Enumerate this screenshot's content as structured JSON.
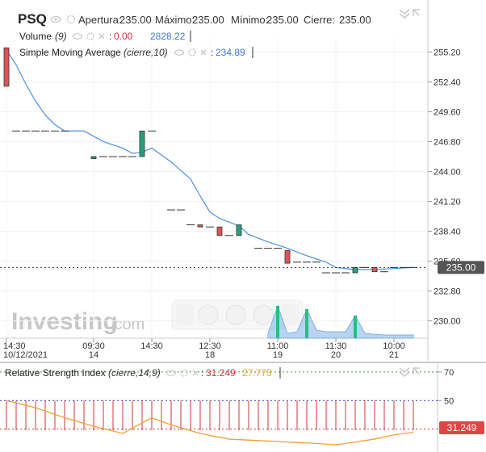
{
  "header": {
    "symbol": "PSQ",
    "ohlc": [
      {
        "label": "Apertura:",
        "value": "235.00"
      },
      {
        "label": "Máximo:",
        "value": "235.00"
      },
      {
        "label": "Mínimo:",
        "value": "235.00"
      },
      {
        "label": "Cierre:",
        "value": "235.00"
      }
    ]
  },
  "volume_legend": {
    "name": "Volume",
    "params": "(9)",
    "value_red": "0.00",
    "value_blue": "2828.22"
  },
  "sma_legend": {
    "name": "Simple Moving Average",
    "params": "(cierre,10)",
    "value": "234.89"
  },
  "rsi_legend": {
    "name": "Relative Strength Index",
    "params": "(cierre,14,9)",
    "value_red": "31.249",
    "value_orange": "27.773"
  },
  "watermark": {
    "brand": "Investing",
    "suffix": ".com"
  },
  "current_price_label": "235.00",
  "rsi_current_label": "31.249",
  "colors": {
    "up": "#26a17b",
    "down": "#e05353",
    "sma": "#4a90e2",
    "rsi_signal": "#f0a030",
    "rsi_main": "#d0343a",
    "volume": "#7fb0e8"
  },
  "chart_data": [
    {
      "type": "candlestick",
      "title": "PSQ",
      "x_labels": [
        {
          "pos": 0,
          "time": "14:30",
          "date": "10/12/2021"
        },
        {
          "pos": 9,
          "time": "09:30",
          "date": "14"
        },
        {
          "pos": 15,
          "time": "14:30",
          "date": ""
        },
        {
          "pos": 21,
          "time": "12:30",
          "date": "18"
        },
        {
          "pos": 28,
          "time": "11:00",
          "date": "19"
        },
        {
          "pos": 34,
          "time": "11:30",
          "date": "20"
        },
        {
          "pos": 40,
          "time": "10:00",
          "date": "21"
        }
      ],
      "y_ticks": [
        255.2,
        252.4,
        249.6,
        246.8,
        244.0,
        241.2,
        238.4,
        235.6,
        232.8,
        230.0
      ],
      "ylim": [
        229.05,
        256.45
      ],
      "current_price": 235.0,
      "candles": [
        {
          "i": 0,
          "o": 255.6,
          "h": 255.6,
          "c": 252.0,
          "l": 252.0
        },
        {
          "i": 1,
          "o": 247.8,
          "h": 247.8,
          "c": 247.8,
          "l": 247.8
        },
        {
          "i": 2,
          "o": 247.8,
          "h": 247.8,
          "c": 247.8,
          "l": 247.8
        },
        {
          "i": 3,
          "o": 247.8,
          "h": 247.8,
          "c": 247.8,
          "l": 247.8
        },
        {
          "i": 4,
          "o": 247.8,
          "h": 247.8,
          "c": 247.8,
          "l": 247.8
        },
        {
          "i": 5,
          "o": 247.8,
          "h": 247.8,
          "c": 247.8,
          "l": 247.8
        },
        {
          "i": 6,
          "o": 247.8,
          "h": 247.8,
          "c": 247.8,
          "l": 247.8
        },
        {
          "i": 9,
          "o": 245.2,
          "h": 245.4,
          "c": 245.4,
          "l": 245.2
        },
        {
          "i": 10,
          "o": 245.4,
          "h": 245.4,
          "c": 245.4,
          "l": 245.4
        },
        {
          "i": 11,
          "o": 245.4,
          "h": 245.4,
          "c": 245.4,
          "l": 245.4
        },
        {
          "i": 12,
          "o": 245.4,
          "h": 245.4,
          "c": 245.4,
          "l": 245.4
        },
        {
          "i": 13,
          "o": 245.4,
          "h": 245.4,
          "c": 245.4,
          "l": 245.4
        },
        {
          "i": 14,
          "o": 245.4,
          "h": 247.8,
          "c": 247.8,
          "l": 245.4
        },
        {
          "i": 15,
          "o": 247.8,
          "h": 247.8,
          "c": 247.8,
          "l": 247.8
        },
        {
          "i": 17,
          "o": 240.4,
          "h": 240.4,
          "c": 240.4,
          "l": 240.4
        },
        {
          "i": 18,
          "o": 240.4,
          "h": 240.4,
          "c": 240.4,
          "l": 240.4
        },
        {
          "i": 19,
          "o": 239.0,
          "h": 239.0,
          "c": 239.0,
          "l": 239.0
        },
        {
          "i": 20,
          "o": 239.0,
          "h": 239.0,
          "c": 238.8,
          "l": 238.8
        },
        {
          "i": 21,
          "o": 238.8,
          "h": 238.8,
          "c": 238.8,
          "l": 238.8
        },
        {
          "i": 22,
          "o": 238.8,
          "h": 238.8,
          "c": 238.0,
          "l": 238.0
        },
        {
          "i": 23,
          "o": 238.0,
          "h": 238.0,
          "c": 238.0,
          "l": 238.0
        },
        {
          "i": 24,
          "o": 238.0,
          "h": 239.0,
          "c": 239.0,
          "l": 238.0
        },
        {
          "i": 26,
          "o": 236.8,
          "h": 236.8,
          "c": 236.8,
          "l": 236.8
        },
        {
          "i": 27,
          "o": 236.8,
          "h": 236.8,
          "c": 236.8,
          "l": 236.8
        },
        {
          "i": 28,
          "o": 236.8,
          "h": 236.8,
          "c": 236.8,
          "l": 236.8
        },
        {
          "i": 29,
          "o": 236.6,
          "h": 236.6,
          "c": 235.4,
          "l": 235.4
        },
        {
          "i": 30,
          "o": 235.5,
          "h": 235.5,
          "c": 235.5,
          "l": 235.5
        },
        {
          "i": 31,
          "o": 235.5,
          "h": 235.5,
          "c": 235.5,
          "l": 235.5
        },
        {
          "i": 32,
          "o": 235.5,
          "h": 235.5,
          "c": 235.5,
          "l": 235.5
        },
        {
          "i": 33,
          "o": 234.5,
          "h": 234.5,
          "c": 234.5,
          "l": 234.5
        },
        {
          "i": 34,
          "o": 234.5,
          "h": 234.5,
          "c": 234.5,
          "l": 234.5
        },
        {
          "i": 35,
          "o": 234.5,
          "h": 234.5,
          "c": 234.5,
          "l": 234.5
        },
        {
          "i": 36,
          "o": 234.5,
          "h": 235.0,
          "c": 235.0,
          "l": 234.5
        },
        {
          "i": 37,
          "o": 235.0,
          "h": 235.0,
          "c": 235.0,
          "l": 235.0
        },
        {
          "i": 38,
          "o": 235.0,
          "h": 235.0,
          "c": 234.6,
          "l": 234.6
        },
        {
          "i": 39,
          "o": 234.6,
          "h": 234.6,
          "c": 234.6,
          "l": 234.6
        },
        {
          "i": 40,
          "o": 235.0,
          "h": 235.0,
          "c": 235.0,
          "l": 235.0
        },
        {
          "i": 41,
          "o": 235.0,
          "h": 235.0,
          "c": 235.0,
          "l": 235.0
        },
        {
          "i": 42,
          "o": 235.0,
          "h": 235.0,
          "c": 235.0,
          "l": 235.0
        }
      ],
      "sma": [
        {
          "i": 0,
          "v": 255.4
        },
        {
          "i": 1,
          "v": 254.0
        },
        {
          "i": 2,
          "v": 252.2
        },
        {
          "i": 3,
          "v": 250.6
        },
        {
          "i": 4,
          "v": 249.3
        },
        {
          "i": 5,
          "v": 248.4
        },
        {
          "i": 6,
          "v": 247.8
        },
        {
          "i": 8,
          "v": 247.8
        },
        {
          "i": 10,
          "v": 246.8
        },
        {
          "i": 12,
          "v": 246.2
        },
        {
          "i": 13,
          "v": 245.7
        },
        {
          "i": 14,
          "v": 245.8
        },
        {
          "i": 15,
          "v": 246.2
        },
        {
          "i": 17,
          "v": 244.9
        },
        {
          "i": 19,
          "v": 243.3
        },
        {
          "i": 20,
          "v": 241.7
        },
        {
          "i": 21,
          "v": 240.2
        },
        {
          "i": 22,
          "v": 239.6
        },
        {
          "i": 24,
          "v": 238.9
        },
        {
          "i": 25,
          "v": 238.1
        },
        {
          "i": 27,
          "v": 237.4
        },
        {
          "i": 29,
          "v": 236.8
        },
        {
          "i": 31,
          "v": 236.1
        },
        {
          "i": 33,
          "v": 235.5
        },
        {
          "i": 34,
          "v": 235.0
        },
        {
          "i": 36,
          "v": 234.8
        },
        {
          "i": 38,
          "v": 234.8
        },
        {
          "i": 40,
          "v": 234.9
        },
        {
          "i": 42,
          "v": 235.0
        }
      ],
      "volume": [
        {
          "i": 27,
          "v": 0.15
        },
        {
          "i": 28,
          "v": 1.0
        },
        {
          "i": 29,
          "v": 0.15
        },
        {
          "i": 30,
          "v": 0.2
        },
        {
          "i": 31,
          "v": 0.9
        },
        {
          "i": 32,
          "v": 0.25
        },
        {
          "i": 33,
          "v": 0.2
        },
        {
          "i": 34,
          "v": 0.2
        },
        {
          "i": 35,
          "v": 0.2
        },
        {
          "i": 36,
          "v": 0.7
        },
        {
          "i": 37,
          "v": 0.15
        },
        {
          "i": 38,
          "v": 0.12
        },
        {
          "i": 39,
          "v": 0.1
        },
        {
          "i": 40,
          "v": 0.1
        },
        {
          "i": 41,
          "v": 0.1
        },
        {
          "i": 42,
          "v": 0.1
        }
      ]
    },
    {
      "type": "line",
      "title": "Relative Strength Index",
      "y_ticks": [
        70,
        50
      ],
      "ylim": [
        14,
        75
      ],
      "levels": [
        70,
        50,
        30
      ],
      "current_value": 31.249,
      "rsi": [
        {
          "i": 0,
          "v": 50
        },
        {
          "i": 3,
          "v": 45
        },
        {
          "i": 6,
          "v": 38
        },
        {
          "i": 9,
          "v": 32
        },
        {
          "i": 12,
          "v": 27
        },
        {
          "i": 15,
          "v": 38
        },
        {
          "i": 17,
          "v": 33
        },
        {
          "i": 20,
          "v": 27
        },
        {
          "i": 23,
          "v": 23
        },
        {
          "i": 26,
          "v": 22
        },
        {
          "i": 29,
          "v": 21
        },
        {
          "i": 32,
          "v": 20
        },
        {
          "i": 34,
          "v": 19
        },
        {
          "i": 36,
          "v": 21
        },
        {
          "i": 38,
          "v": 23
        },
        {
          "i": 40,
          "v": 26
        },
        {
          "i": 42,
          "v": 27.773
        }
      ]
    }
  ]
}
